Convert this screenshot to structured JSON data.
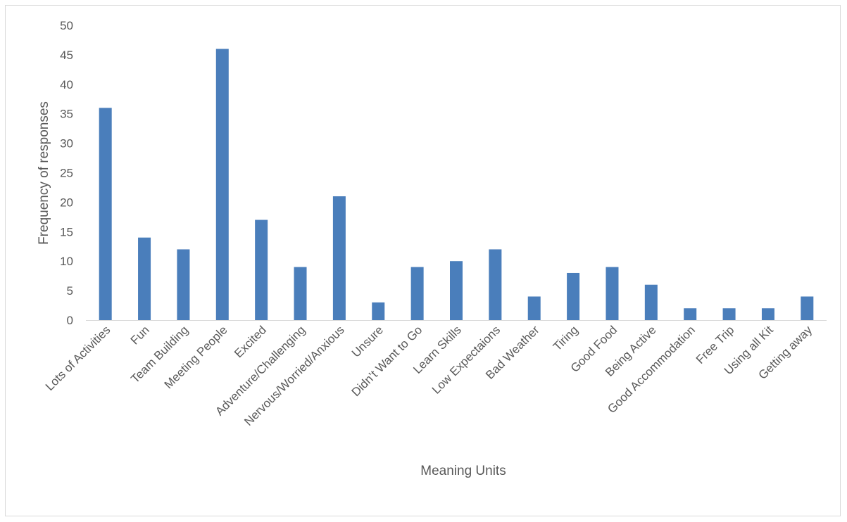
{
  "chart_data": {
    "type": "bar",
    "title": "",
    "xlabel": "Meaning Units",
    "ylabel": "Frequency of responses",
    "ylim": [
      0,
      50
    ],
    "y_ticks": [
      0,
      5,
      10,
      15,
      20,
      25,
      30,
      35,
      40,
      45,
      50
    ],
    "grid": false,
    "legend": "none",
    "bar_color": "#4a7ebb",
    "categories": [
      "Lots of Activities",
      "Fun",
      "Team Building",
      "Meeting People",
      "Excited",
      "Adventure/Challenging",
      "Nervous/Worried/Anxious",
      "Unsure",
      "Didn’t Want to Go",
      "Learn Skills",
      "Low Expectaions",
      "Bad Weather",
      "Tiring",
      "Good Food",
      "Being Active",
      "Good Accommodation",
      "Free Trip",
      "Using all Kit",
      "Getting away"
    ],
    "values": [
      36,
      14,
      12,
      46,
      17,
      9,
      21,
      3,
      9,
      10,
      12,
      4,
      8,
      9,
      6,
      2,
      2,
      2,
      4
    ]
  }
}
